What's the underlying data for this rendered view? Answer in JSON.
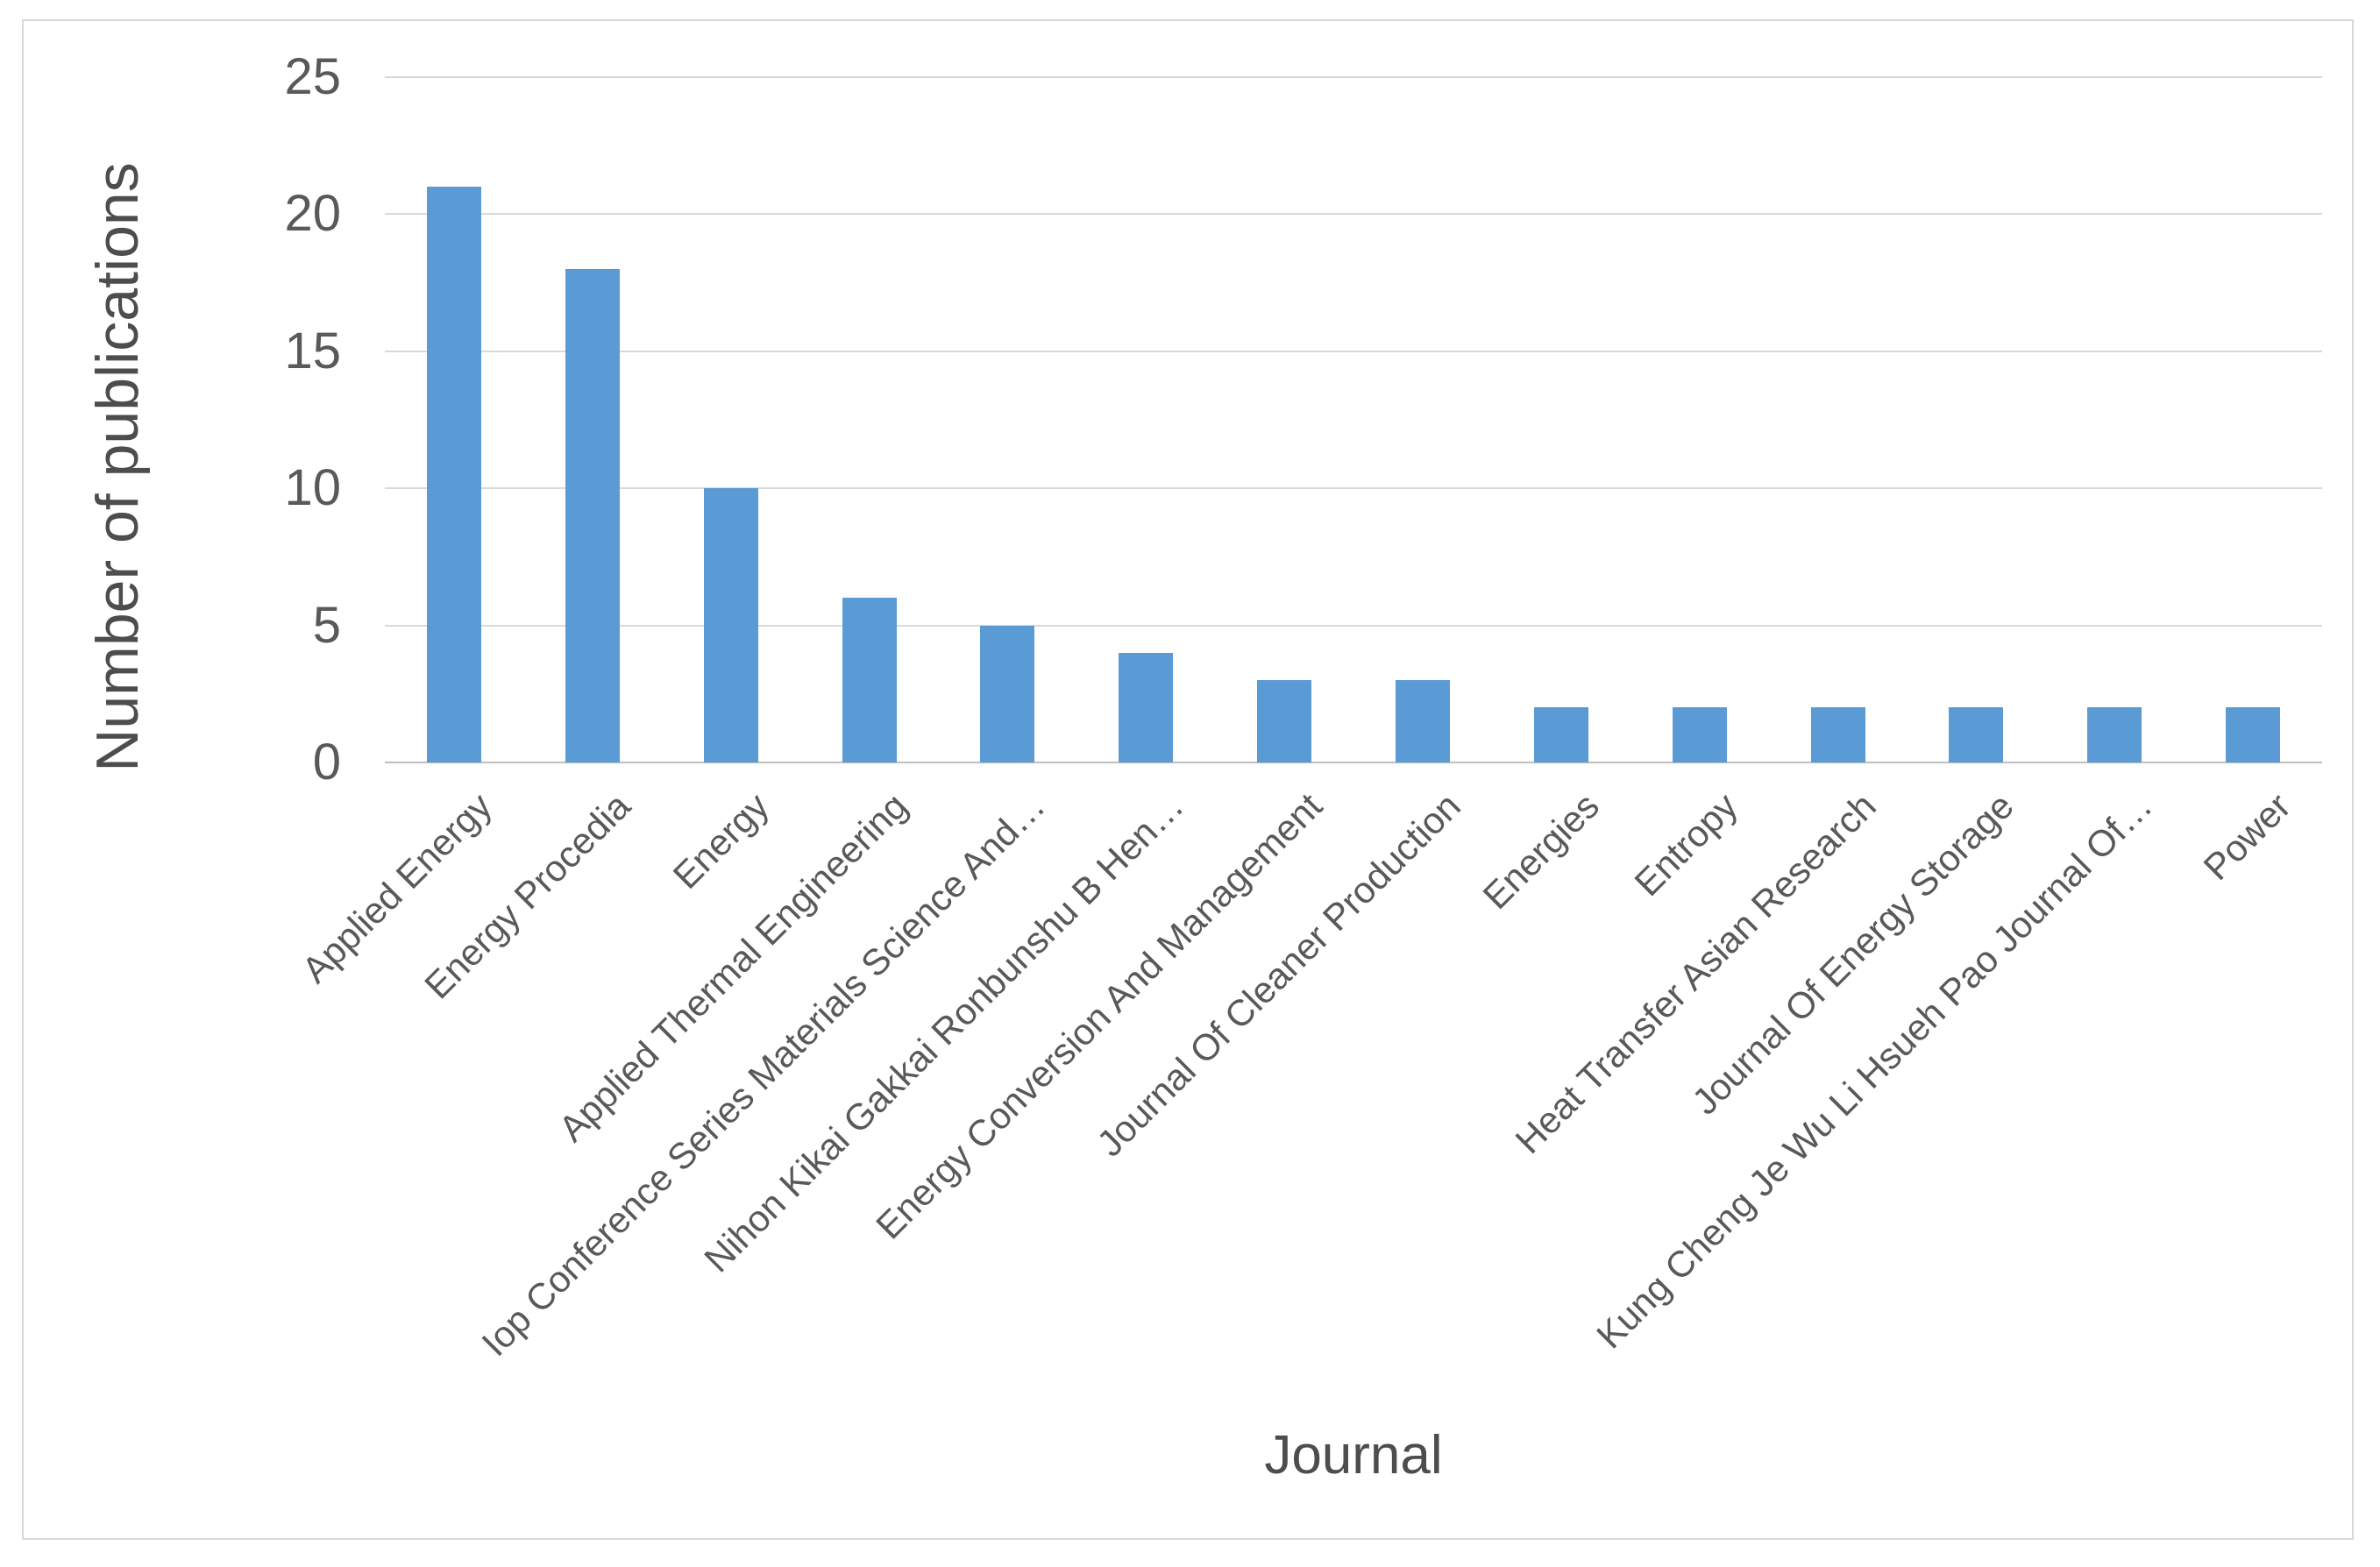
{
  "chart_data": {
    "type": "bar",
    "title": "",
    "xlabel": "Journal",
    "ylabel": "Number of publications",
    "categories": [
      "Applied Energy",
      "Energy Procedia",
      "Energy",
      "Applied Thermal Engineering",
      "Iop Conference Series Materials Science And…",
      "Nihon Kikai Gakkai Ronbunshu B Hen…",
      "Energy Conversion And Management",
      "Journal Of Cleaner Production",
      "Energies",
      "Entropy",
      "Heat Transfer Asian Research",
      "Journal Of Energy Storage",
      "Kung Cheng Je Wu Li Hsueh Pao Journal Of…",
      "Power"
    ],
    "values": [
      21,
      18,
      10,
      6,
      5,
      4,
      3,
      3,
      2,
      2,
      2,
      2,
      2,
      2
    ],
    "yticks": [
      0,
      5,
      10,
      15,
      20,
      25
    ],
    "ylim": [
      0,
      25
    ],
    "grid": "horizontal",
    "legend": "none",
    "colors": {
      "bar": "#5B9BD5",
      "gridline": "#D9D9D9",
      "axis_line": "#BFBFBF",
      "tick_text": "#595959",
      "title_text": "#4D4D4D",
      "frame_border": "#D9D9D9"
    }
  }
}
